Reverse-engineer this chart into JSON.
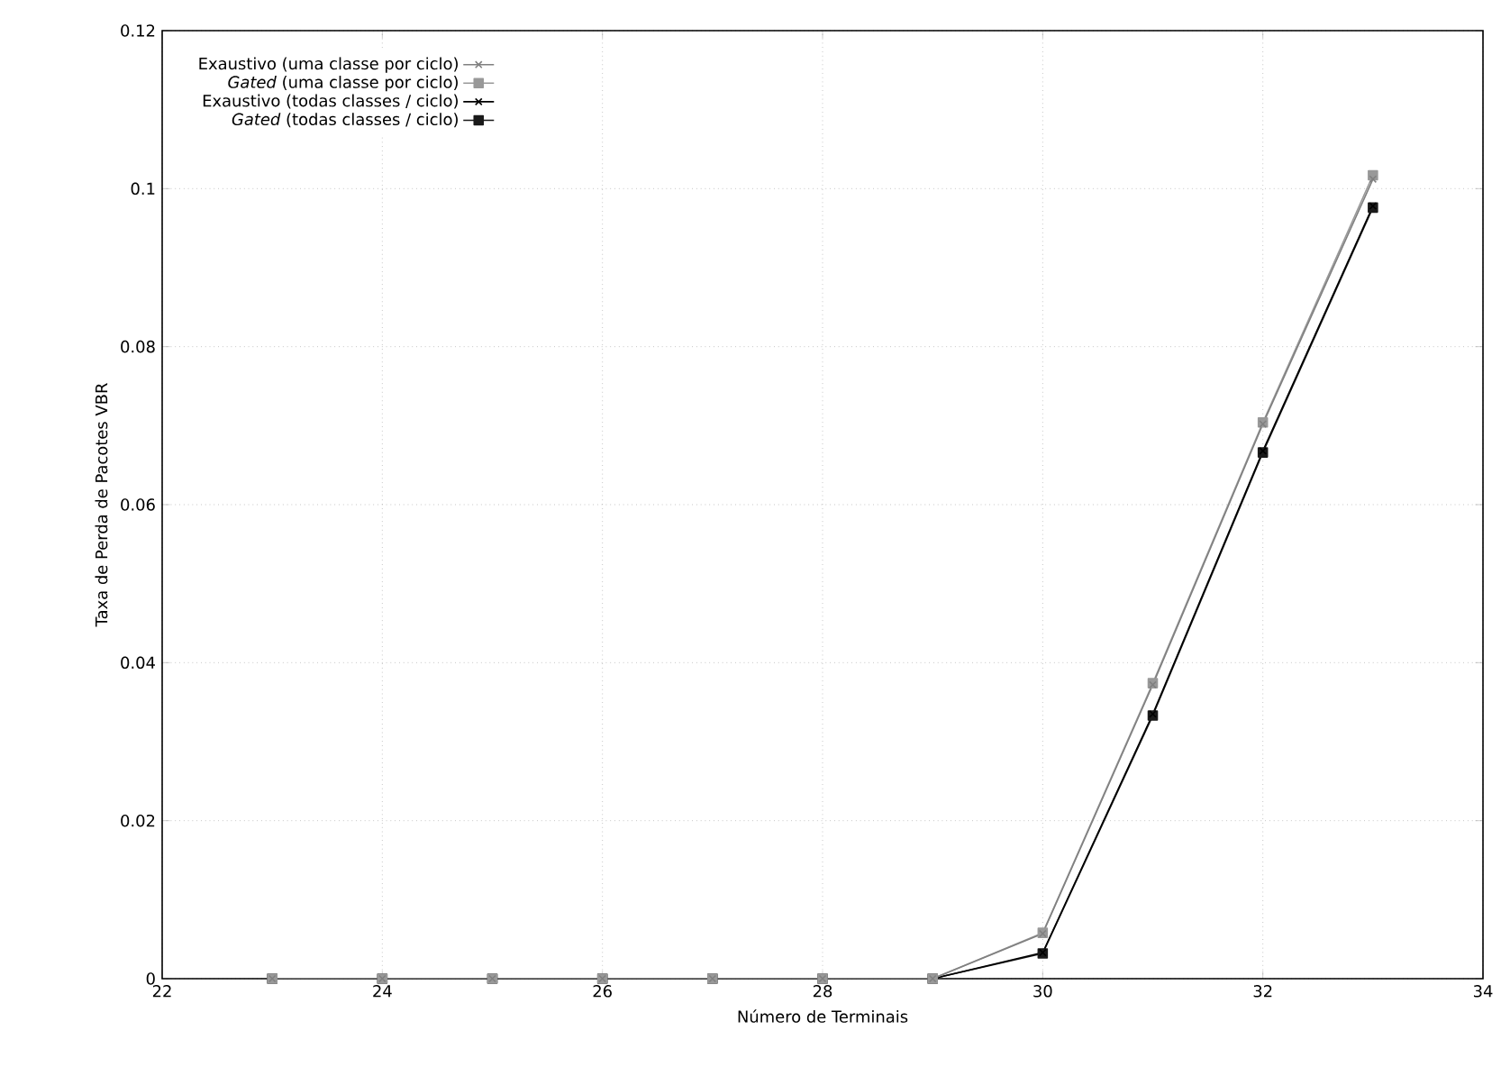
{
  "chart_data": {
    "type": "line",
    "xlabel": "Número de Terminais",
    "ylabel": "Taxa de Perda de Pacotes VBR",
    "x": [
      23,
      24,
      25,
      26,
      27,
      28,
      29,
      30,
      31,
      32,
      33
    ],
    "series": [
      {
        "name": "Exaustivo (uma classe por ciclo)",
        "color": "#808080",
        "marker": "cross",
        "values": [
          0,
          0,
          0,
          0,
          0,
          0,
          0,
          0.0057,
          0.0372,
          0.0702,
          0.1012
        ]
      },
      {
        "name": "*Gated* (uma classe por ciclo)",
        "color": "#999999",
        "marker": "square",
        "values": [
          0,
          0,
          0,
          0,
          0,
          0,
          0,
          0.0058,
          0.0374,
          0.0704,
          0.1017
        ]
      },
      {
        "name": "Exaustivo (todas classes / ciclo)",
        "color": "#000000",
        "marker": "cross",
        "values": [
          0,
          0,
          0,
          0,
          0,
          0,
          0,
          0.0033,
          0.0335,
          0.0668,
          0.0978
        ]
      },
      {
        "name": "*Gated* (todas classes / ciclo)",
        "color": "#1a1a1a",
        "marker": "square",
        "values": [
          0,
          0,
          0,
          0,
          0,
          0,
          0,
          0.0032,
          0.0333,
          0.0666,
          0.0976
        ]
      }
    ],
    "xlim": [
      22,
      34
    ],
    "xticks": [
      22,
      24,
      26,
      28,
      30,
      32,
      34
    ],
    "ylim": [
      0,
      0.12
    ],
    "yticks": [
      0,
      0.02,
      0.04,
      0.06,
      0.08,
      0.1,
      0.12
    ],
    "grid": true,
    "legend": "top left",
    "line_style": "solid"
  }
}
